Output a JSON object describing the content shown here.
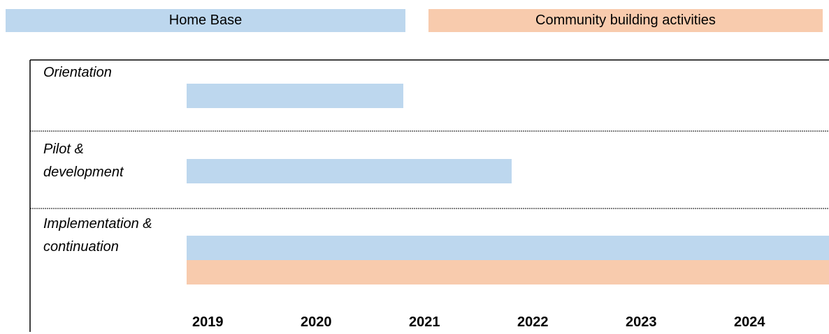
{
  "chart_data": {
    "type": "gantt",
    "categories": [
      "Orientation",
      "Pilot & development",
      "Implementation & continuation"
    ],
    "series": [
      {
        "name": "Home Base",
        "color": "#bdd7ee",
        "start": [
          2019,
          2019,
          2019
        ],
        "end": [
          2021,
          2022,
          2025
        ]
      },
      {
        "name": "Community building activities",
        "color": "#f8cbad",
        "start": [
          null,
          null,
          2019
        ],
        "end": [
          null,
          null,
          2025
        ]
      }
    ],
    "xlim": [
      2019,
      2025
    ],
    "xticks": [
      2019,
      2020,
      2021,
      2022,
      2023,
      2024
    ]
  }
}
